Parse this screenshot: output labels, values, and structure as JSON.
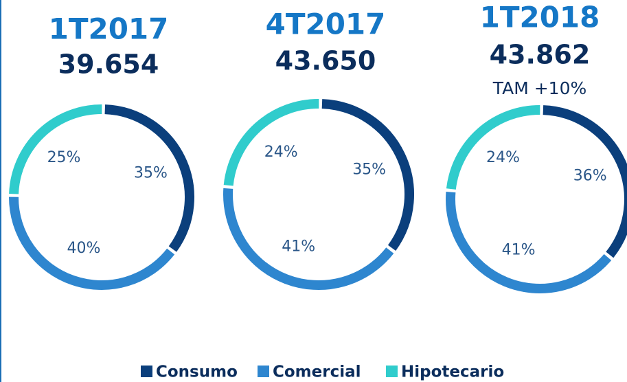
{
  "chart_data": [
    {
      "type": "donut",
      "title": "1T2017",
      "subtitle": "39.654",
      "categories": [
        "Consumo",
        "Comercial",
        "Hipotecario"
      ],
      "values": [
        35,
        40,
        25
      ],
      "value_labels": [
        "35%",
        "40%",
        "25%"
      ],
      "colors": [
        "#0b3f7c",
        "#2e86cf",
        "#30cccc"
      ]
    },
    {
      "type": "donut",
      "title": "4T2017",
      "subtitle": "43.650",
      "categories": [
        "Consumo",
        "Comercial",
        "Hipotecario"
      ],
      "values": [
        35,
        41,
        24
      ],
      "value_labels": [
        "35%",
        "41%",
        "24%"
      ],
      "colors": [
        "#0b3f7c",
        "#2e86cf",
        "#30cccc"
      ]
    },
    {
      "type": "donut",
      "title": "1T2018",
      "subtitle": "43.862",
      "annotation": "TAM +10%",
      "categories": [
        "Consumo",
        "Comercial",
        "Hipotecario"
      ],
      "values": [
        36,
        41,
        24
      ],
      "value_labels": [
        "36%",
        "41%",
        "24%"
      ],
      "colors": [
        "#0b3f7c",
        "#2e86cf",
        "#30cccc"
      ]
    }
  ]
}
